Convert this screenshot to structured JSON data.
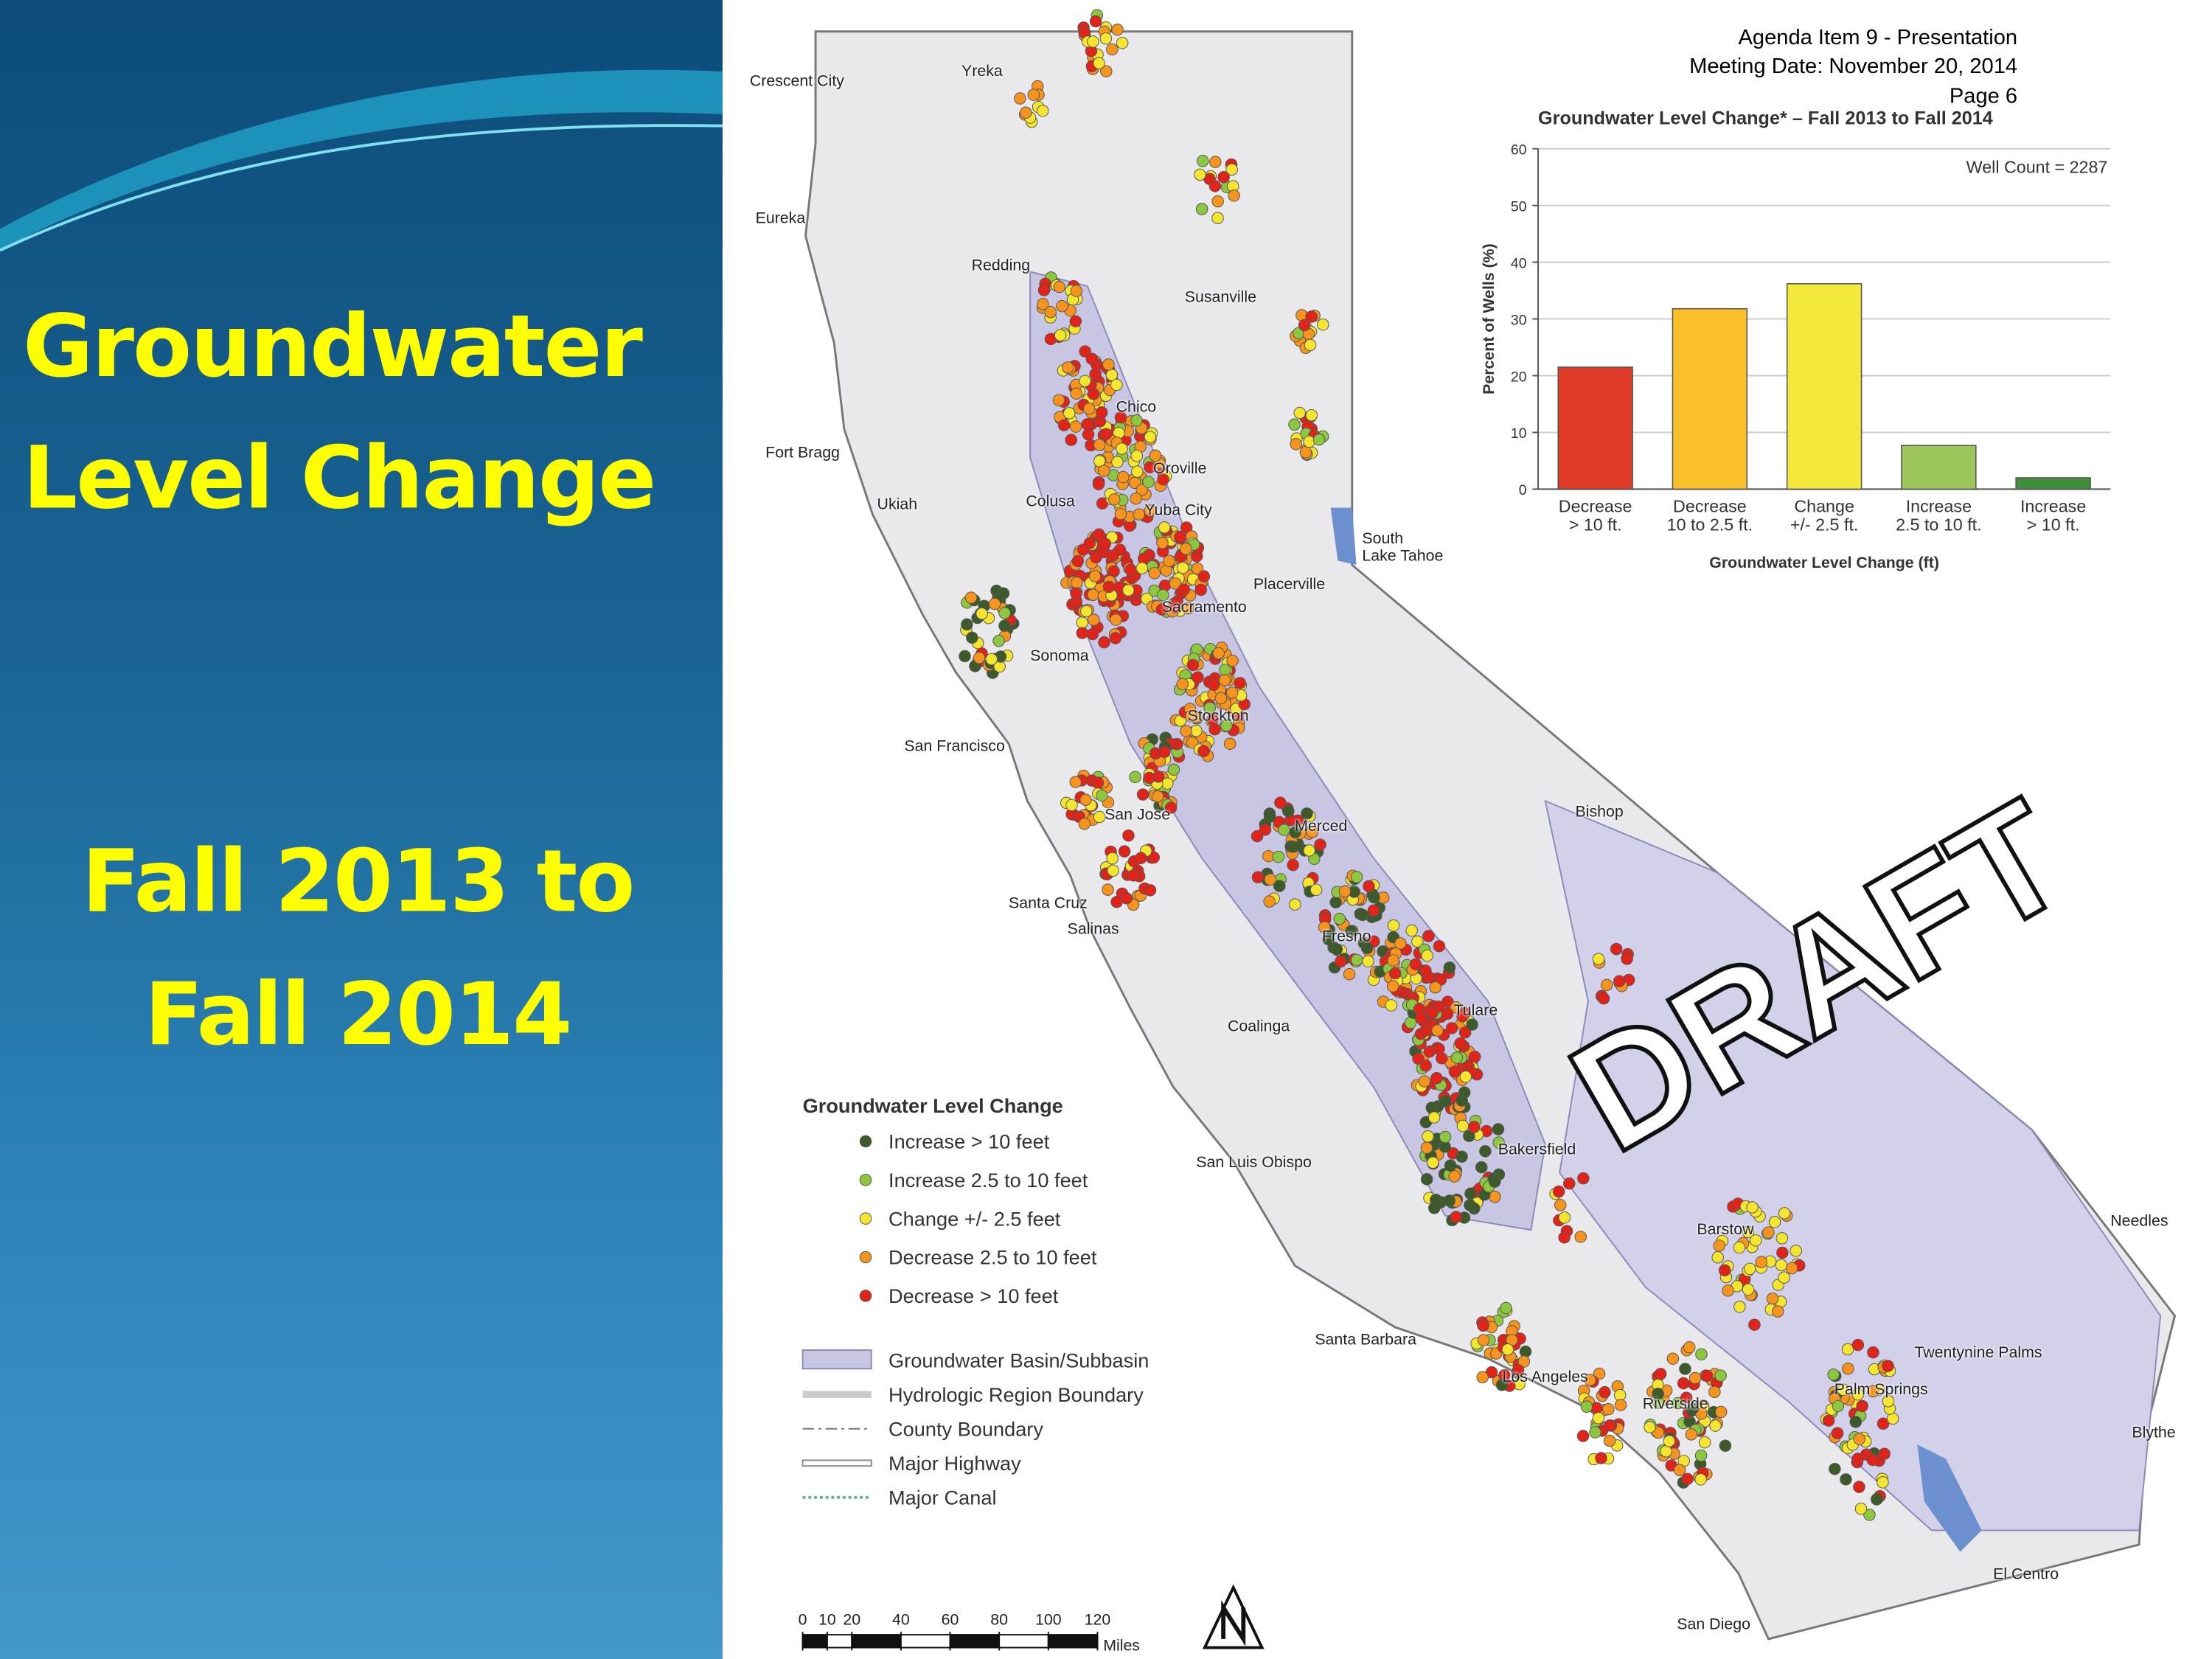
{
  "slide": {
    "title_lines": [
      "Groundwater",
      "Level Change"
    ],
    "subtitle_lines": [
      "Fall 2013 to",
      "Fall 2014"
    ]
  },
  "header": [
    "Agenda Item 9 - Presentation",
    "Meeting Date: November 20, 2014",
    "Page 6"
  ],
  "map": {
    "cities": [
      "Crescent City",
      "Yreka",
      "Eureka",
      "Redding",
      "Susanville",
      "Chico",
      "Fort Bragg",
      "Oroville",
      "Ukiah",
      "Colusa",
      "Yuba City",
      "South\nLake Tahoe",
      "Placerville",
      "Sacramento",
      "Sonoma",
      "Stockton",
      "San Francisco",
      "Bishop",
      "San Jose",
      "Merced",
      "Santa Cruz",
      "Salinas",
      "Fresno",
      "Coalinga",
      "Tulare",
      "San Luis Obispo",
      "Bakersfield",
      "Barstow",
      "Needles",
      "Santa Barbara",
      "Twentynine Palms",
      "Los Angeles",
      "Palm Springs",
      "Riverside",
      "Blythe",
      "El Centro",
      "San Diego"
    ],
    "watermark": "DRAFT",
    "legend": {
      "title": "Groundwater Level Change",
      "items": [
        {
          "label": "Increase > 10 feet",
          "color": "#3c5a2a"
        },
        {
          "label": "Increase 2.5 to 10 feet",
          "color": "#8dc63f"
        },
        {
          "label": "Change +/- 2.5 feet",
          "color": "#f5e52f"
        },
        {
          "label": "Decrease 2.5 to 10 feet",
          "color": "#f7941d"
        },
        {
          "label": "Decrease > 10 feet",
          "color": "#e2231a"
        }
      ],
      "layers": [
        "Groundwater Basin/Subbasin",
        "Hydrologic Region Boundary",
        "County Boundary",
        "Major Highway",
        "Major Canal"
      ]
    },
    "scale": {
      "ticks": [
        0,
        10,
        20,
        40,
        60,
        80,
        100,
        120
      ],
      "unit": "Miles"
    }
  },
  "chart_data": {
    "type": "bar",
    "title": "Groundwater Level Change* – Fall 2013 to Fall 2014",
    "y_label": "Percent of Wells (%)",
    "x_label": "Groundwater Level Change (ft)",
    "annotation": "Well Count = 2287",
    "categories": [
      "Decrease\n> 10 ft.",
      "Decrease\n10 to 2.5 ft.",
      "Change\n+/- 2.5 ft.",
      "Increase\n2.5 to 10 ft.",
      "Increase\n> 10 ft."
    ],
    "values": [
      21.5,
      31.8,
      36.2,
      7.7,
      2
    ],
    "colors": [
      "#e03a28",
      "#f9c02a",
      "#f4e83a",
      "#9dc75a",
      "#3f8f3a"
    ],
    "ylim": [
      0,
      60
    ],
    "yticks": [
      0,
      10,
      20,
      30,
      40,
      50,
      60
    ],
    "grid": true
  }
}
